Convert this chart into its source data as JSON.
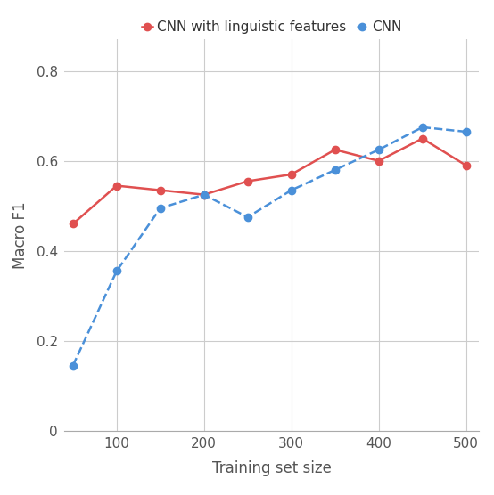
{
  "cnn_x": [
    50,
    100,
    150,
    200,
    250,
    300,
    350,
    400,
    450,
    500
  ],
  "cnn_y": [
    0.145,
    0.355,
    0.495,
    0.525,
    0.475,
    0.535,
    0.58,
    0.625,
    0.675,
    0.665
  ],
  "cnn_ling_x": [
    50,
    100,
    150,
    200,
    250,
    300,
    350,
    400,
    450,
    500
  ],
  "cnn_ling_y": [
    0.46,
    0.545,
    0.535,
    0.525,
    0.555,
    0.57,
    0.625,
    0.6,
    0.65,
    0.59
  ],
  "cnn_color": "#4a90d9",
  "cnn_ling_color": "#e05050",
  "cnn_label": "CNN",
  "cnn_ling_label": "CNN with linguistic features",
  "xlabel": "Training set size",
  "ylabel": "Macro F1",
  "xlim": [
    40,
    515
  ],
  "ylim": [
    0,
    0.87
  ],
  "yticks": [
    0,
    0.2,
    0.4,
    0.6,
    0.8
  ],
  "ytick_labels": [
    "0",
    "0.2",
    "0.4",
    "0.6",
    "0.8"
  ],
  "xticks": [
    100,
    200,
    300,
    400,
    500
  ],
  "marker_size": 6,
  "linewidth": 1.8,
  "grid_color": "#cccccc",
  "bg_color": "#ffffff",
  "legend_fontsize": 11,
  "axis_label_fontsize": 12,
  "tick_fontsize": 11,
  "spine_color": "#aaaaaa",
  "text_color": "#555555"
}
